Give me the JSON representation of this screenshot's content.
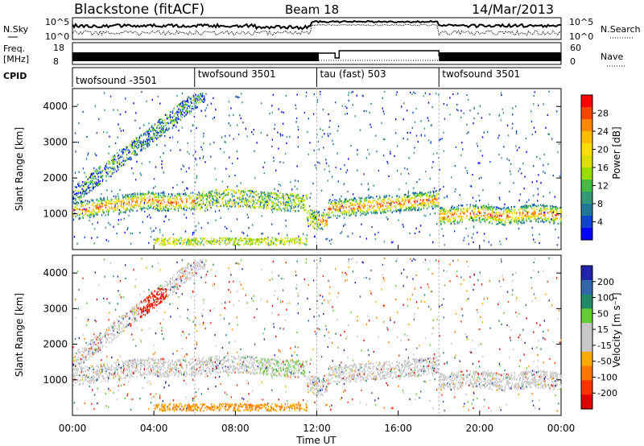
{
  "header": {
    "title": "Blackstone (fitACF)",
    "beam": "Beam 18",
    "date": "14/Mar/2013"
  },
  "sky_panel": {
    "left_label": "N.Sky",
    "right_label": "N.Search",
    "ticks": [
      "10^5",
      "10^0"
    ]
  },
  "freq_panel": {
    "left_label_1": "Freq.",
    "left_label_2": "[MHz]",
    "left_ticks": [
      "18",
      "8"
    ],
    "right_ticks": [
      "60",
      "0"
    ],
    "right_label": "Nave"
  },
  "cpid": {
    "label": "CPID",
    "segments": [
      {
        "name": "twofsound -3501",
        "start": 0,
        "end": 6
      },
      {
        "name": "twofsound 3501",
        "start": 6,
        "end": 12
      },
      {
        "name": "tau (fast) 503",
        "start": 12,
        "end": 18
      },
      {
        "name": "twofsound 3501",
        "start": 18,
        "end": 24
      }
    ]
  },
  "power_colorbar": {
    "label": "Power [dB]",
    "ticks": [
      "28",
      "24",
      "20",
      "16",
      "12",
      "8",
      "4"
    ],
    "colors": [
      "#ff0000",
      "#ff4400",
      "#ff8800",
      "#ffbb00",
      "#ffdd00",
      "#dddd00",
      "#99dd00",
      "#44bb44",
      "#339977",
      "#227799",
      "#1144cc",
      "#0000ff"
    ]
  },
  "velocity_colorbar": {
    "label": "Velocity [m s⁻¹]",
    "ticks": [
      "200",
      "100",
      "50",
      "15",
      "-15",
      "-50",
      "-100",
      "-200"
    ],
    "colors": [
      "#2222aa",
      "#3366aa",
      "#228866",
      "#66cc33",
      "#c8c8c8",
      "#c8c8c8",
      "#ffaa00",
      "#ff7700",
      "#ff3300",
      "#dd0000"
    ]
  },
  "chart_data": [
    {
      "type": "heatmap",
      "title": "Power",
      "ylabel": "Slant Range [km]",
      "xlabel": "Time UT",
      "ylim": [
        0,
        4500
      ],
      "xlim": [
        0,
        24
      ],
      "yticks": [
        "4000",
        "3000",
        "2000",
        "1000"
      ],
      "xticks": [
        "00:00",
        "04:00",
        "08:00",
        "12:00",
        "16:00",
        "20:00",
        "00:00"
      ]
    },
    {
      "type": "heatmap",
      "title": "Velocity",
      "ylabel": "Slant Range [km]",
      "xlabel": "Time UT",
      "ylim": [
        0,
        4500
      ],
      "xlim": [
        0,
        24
      ],
      "yticks": [
        "4000",
        "3000",
        "2000",
        "1000"
      ],
      "xticks": [
        "00:00",
        "04:00",
        "08:00",
        "12:00",
        "16:00",
        "20:00",
        "00:00"
      ]
    }
  ]
}
